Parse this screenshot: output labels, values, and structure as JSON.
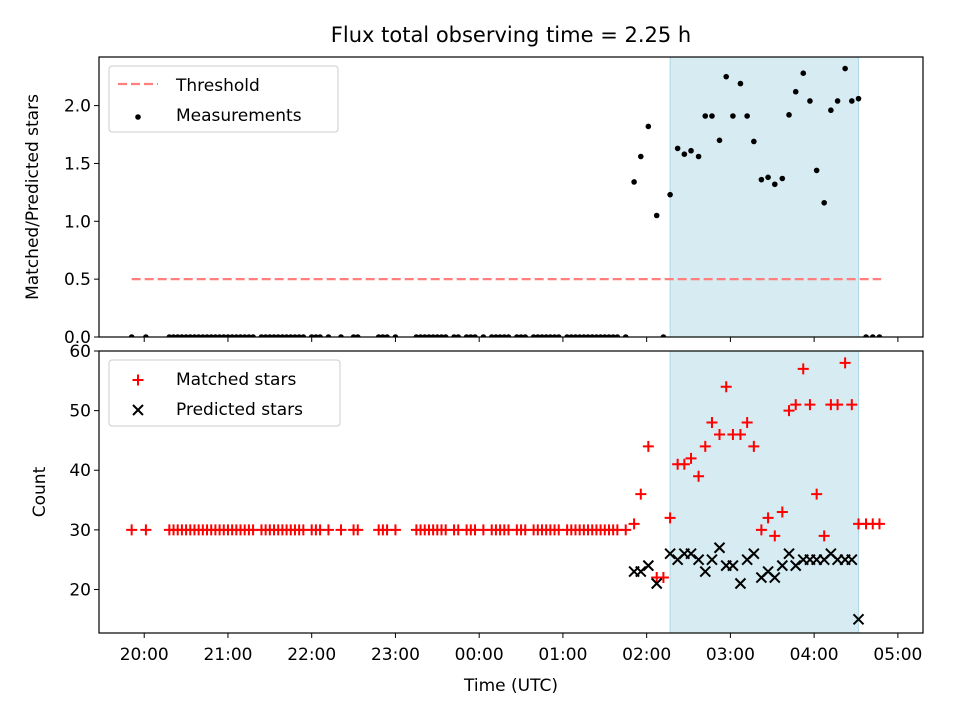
{
  "title": "Flux total observing time = 2.25 h",
  "colors": {
    "threshold": "#ff7f7f",
    "measurement": "#000000",
    "matched": "#ff0000",
    "predicted": "#000000",
    "shade": "#add8e6"
  },
  "chart_data": [
    {
      "type": "scatter",
      "title": "Flux total observing time = 2.25 h",
      "ylabel": "Matched/Predicted stars",
      "xlabel": "",
      "ylim": [
        0,
        2.42
      ],
      "xlim": [
        -0.54,
        9.3
      ],
      "yticks": [
        "0.0",
        "0.5",
        "1.0",
        "1.5",
        "2.0"
      ],
      "shaded_span": {
        "start": 6.28,
        "end": 8.53
      },
      "legend_position": "upper-left",
      "threshold": {
        "name": "Threshold",
        "value": 0.5,
        "x_range": [
          -0.15,
          8.8
        ]
      },
      "series": [
        {
          "name": "Measurements",
          "x": [
            -0.15,
            0.02,
            0.3,
            0.35,
            0.4,
            0.45,
            0.5,
            0.55,
            0.6,
            0.65,
            0.7,
            0.75,
            0.8,
            0.85,
            0.9,
            0.95,
            1.0,
            1.05,
            1.1,
            1.15,
            1.2,
            1.25,
            1.3,
            1.4,
            1.45,
            1.5,
            1.55,
            1.6,
            1.65,
            1.7,
            1.75,
            1.8,
            1.85,
            1.9,
            2.0,
            2.05,
            2.1,
            2.2,
            2.35,
            2.5,
            2.55,
            2.8,
            2.85,
            2.9,
            3.0,
            3.25,
            3.3,
            3.35,
            3.4,
            3.45,
            3.5,
            3.55,
            3.6,
            3.7,
            3.75,
            3.85,
            3.9,
            3.95,
            4.05,
            4.15,
            4.2,
            4.25,
            4.3,
            4.35,
            4.45,
            4.5,
            4.55,
            4.65,
            4.7,
            4.75,
            4.8,
            4.85,
            4.9,
            4.95,
            5.05,
            5.1,
            5.15,
            5.2,
            5.25,
            5.3,
            5.35,
            5.4,
            5.45,
            5.5,
            5.55,
            5.6,
            5.65,
            5.75,
            5.85,
            5.93,
            6.02,
            6.12,
            6.2,
            6.28,
            6.37,
            6.45,
            6.53,
            6.62,
            6.7,
            6.78,
            6.87,
            6.95,
            7.03,
            7.12,
            7.2,
            7.28,
            7.37,
            7.45,
            7.53,
            7.62,
            7.7,
            7.78,
            7.87,
            7.95,
            8.03,
            8.12,
            8.2,
            8.28,
            8.37,
            8.45,
            8.53,
            8.62,
            8.7,
            8.78
          ],
          "y": [
            0,
            0,
            0,
            0,
            0,
            0,
            0,
            0,
            0,
            0,
            0,
            0,
            0,
            0,
            0,
            0,
            0,
            0,
            0,
            0,
            0,
            0,
            0,
            0,
            0,
            0,
            0,
            0,
            0,
            0,
            0,
            0,
            0,
            0,
            0,
            0,
            0,
            0,
            0,
            0,
            0,
            0,
            0,
            0,
            0,
            0,
            0,
            0,
            0,
            0,
            0,
            0,
            0,
            0,
            0,
            0,
            0,
            0,
            0,
            0,
            0,
            0,
            0,
            0,
            0,
            0,
            0,
            0,
            0,
            0,
            0,
            0,
            0,
            0,
            0,
            0,
            0,
            0,
            0,
            0,
            0,
            0,
            0,
            0,
            0,
            0,
            0,
            0,
            1.34,
            1.56,
            1.82,
            1.05,
            0,
            1.23,
            1.63,
            1.58,
            1.61,
            1.56,
            1.91,
            1.91,
            1.7,
            2.25,
            1.91,
            2.19,
            1.91,
            1.69,
            1.36,
            1.38,
            1.32,
            1.37,
            1.92,
            2.12,
            2.28,
            2.04,
            1.44,
            1.16,
            1.96,
            2.04,
            2.32,
            2.04,
            2.06,
            0,
            0,
            0
          ]
        }
      ]
    },
    {
      "type": "scatter",
      "xlabel": "Time (UTC)",
      "ylabel": "Count",
      "ylim": [
        12.7,
        60
      ],
      "xlim": [
        -0.54,
        9.3
      ],
      "yticks": [
        "20",
        "30",
        "40",
        "50",
        "60"
      ],
      "xticks": [
        "20:00",
        "21:00",
        "22:00",
        "23:00",
        "00:00",
        "01:00",
        "02:00",
        "03:00",
        "04:00",
        "05:00"
      ],
      "shaded_span": {
        "start": 6.28,
        "end": 8.53
      },
      "legend_position": "upper-left",
      "series": [
        {
          "name": "Matched stars",
          "marker": "plus",
          "x": [
            -0.15,
            0.02,
            0.3,
            0.35,
            0.4,
            0.45,
            0.5,
            0.55,
            0.6,
            0.65,
            0.7,
            0.75,
            0.8,
            0.85,
            0.9,
            0.95,
            1.0,
            1.05,
            1.1,
            1.15,
            1.2,
            1.25,
            1.3,
            1.4,
            1.45,
            1.5,
            1.55,
            1.6,
            1.65,
            1.7,
            1.75,
            1.8,
            1.85,
            1.9,
            2.0,
            2.05,
            2.1,
            2.2,
            2.35,
            2.5,
            2.55,
            2.8,
            2.85,
            2.9,
            3.0,
            3.25,
            3.3,
            3.35,
            3.4,
            3.45,
            3.5,
            3.55,
            3.6,
            3.7,
            3.75,
            3.85,
            3.9,
            3.95,
            4.05,
            4.15,
            4.2,
            4.25,
            4.3,
            4.35,
            4.45,
            4.5,
            4.55,
            4.65,
            4.7,
            4.75,
            4.8,
            4.85,
            4.9,
            4.95,
            5.05,
            5.1,
            5.15,
            5.2,
            5.25,
            5.3,
            5.35,
            5.4,
            5.45,
            5.5,
            5.55,
            5.6,
            5.65,
            5.75,
            5.85,
            5.93,
            6.02,
            6.12,
            6.2,
            6.28,
            6.37,
            6.45,
            6.53,
            6.62,
            6.7,
            6.78,
            6.87,
            6.95,
            7.03,
            7.12,
            7.2,
            7.28,
            7.37,
            7.45,
            7.53,
            7.62,
            7.7,
            7.78,
            7.87,
            7.95,
            8.03,
            8.12,
            8.2,
            8.28,
            8.37,
            8.45,
            8.53,
            8.62,
            8.7,
            8.78
          ],
          "y": [
            30,
            30,
            30,
            30,
            30,
            30,
            30,
            30,
            30,
            30,
            30,
            30,
            30,
            30,
            30,
            30,
            30,
            30,
            30,
            30,
            30,
            30,
            30,
            30,
            30,
            30,
            30,
            30,
            30,
            30,
            30,
            30,
            30,
            30,
            30,
            30,
            30,
            30,
            30,
            30,
            30,
            30,
            30,
            30,
            30,
            30,
            30,
            30,
            30,
            30,
            30,
            30,
            30,
            30,
            30,
            30,
            30,
            30,
            30,
            30,
            30,
            30,
            30,
            30,
            30,
            30,
            30,
            30,
            30,
            30,
            30,
            30,
            30,
            30,
            30,
            30,
            30,
            30,
            30,
            30,
            30,
            30,
            30,
            30,
            30,
            30,
            30,
            30,
            31,
            36,
            44,
            22,
            22,
            32,
            41,
            41,
            42,
            39,
            44,
            48,
            46,
            54,
            46,
            46,
            48,
            44,
            30,
            32,
            29,
            33,
            50,
            51,
            57,
            51,
            36,
            29,
            51,
            51,
            58,
            51,
            31,
            31,
            31,
            31
          ]
        },
        {
          "name": "Predicted stars",
          "marker": "x",
          "x": [
            5.85,
            5.93,
            6.02,
            6.12,
            6.28,
            6.37,
            6.45,
            6.53,
            6.62,
            6.7,
            6.78,
            6.87,
            6.95,
            7.03,
            7.12,
            7.2,
            7.28,
            7.37,
            7.45,
            7.53,
            7.62,
            7.7,
            7.78,
            7.87,
            7.95,
            8.03,
            8.12,
            8.2,
            8.28,
            8.37,
            8.45,
            8.53
          ],
          "y": [
            23,
            23,
            24,
            21,
            26,
            25,
            26,
            26,
            25,
            23,
            25,
            27,
            24,
            24,
            21,
            25,
            26,
            22,
            23,
            22,
            24,
            26,
            24,
            25,
            25,
            25,
            25,
            26,
            25,
            25,
            25,
            15
          ]
        }
      ]
    }
  ]
}
